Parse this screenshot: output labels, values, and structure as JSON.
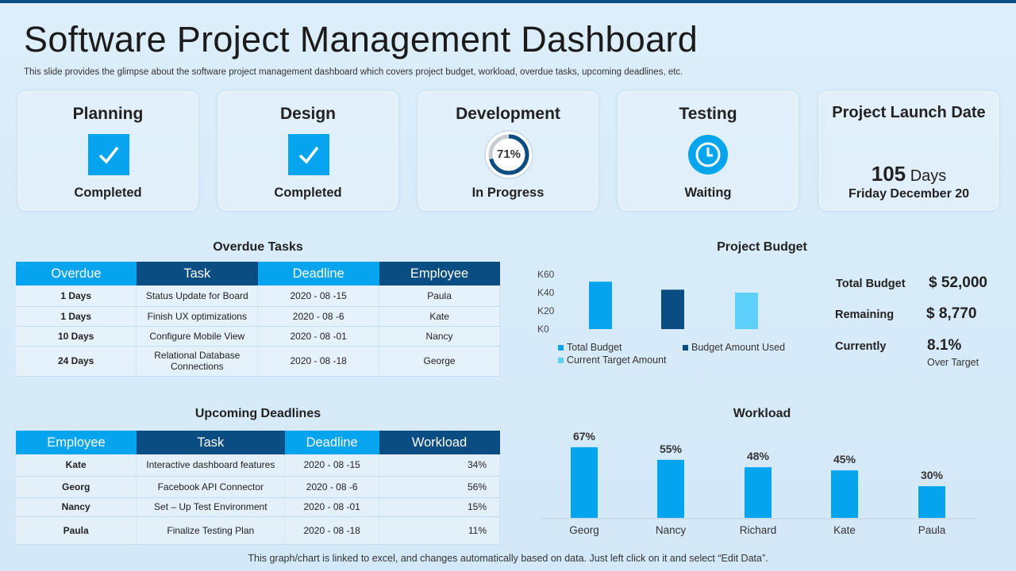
{
  "title": "Software Project Management Dashboard",
  "subtitle": "This slide provides the glimpse about the software project management dashboard which covers project budget, workload, overdue tasks, upcoming deadlines, etc.",
  "phases": [
    {
      "name": "Planning",
      "status": "Completed",
      "icon": "check-icon"
    },
    {
      "name": "Design",
      "status": "Completed",
      "icon": "check-icon"
    },
    {
      "name": "Development",
      "status": "In Progress",
      "icon": "progress-ring-icon",
      "progress_label": "71%",
      "progress": 0.71
    },
    {
      "name": "Testing",
      "status": "Waiting",
      "icon": "clock-icon"
    }
  ],
  "launch": {
    "title": "Project Launch Date",
    "days_num": "105",
    "days_unit": "Days",
    "date": "Friday December 20"
  },
  "overdue": {
    "title": "Overdue Tasks",
    "headers": [
      "Overdue",
      "Task",
      "Deadline",
      "Employee"
    ],
    "rows": [
      [
        "1 Days",
        "Status Update for Board",
        "2020 - 08 -15",
        "Paula"
      ],
      [
        "1 Days",
        "Finish UX optimizations",
        "2020 - 08 -6",
        "Kate"
      ],
      [
        "10 Days",
        "Configure Mobile View",
        "2020 - 08 -01",
        "Nancy"
      ],
      [
        "24 Days",
        "Relational Database Connections",
        "2020 - 08 -18",
        "George"
      ]
    ]
  },
  "upcoming": {
    "title": "Upcoming Deadlines",
    "headers": [
      "Employee",
      "Task",
      "Deadline",
      "Workload"
    ],
    "rows": [
      [
        "Kate",
        "Interactive dashboard features",
        "2020 - 08 -15",
        "34%"
      ],
      [
        "Georg",
        "Facebook API Connector",
        "2020 - 08 -6",
        "56%"
      ],
      [
        "Nancy",
        "Set – Up Test Environment",
        "2020 - 08 -01",
        "15%"
      ],
      [
        "Paula",
        "Finalize Testing Plan",
        "2020 - 08 -18",
        "11%"
      ]
    ]
  },
  "budget_summary": {
    "total_label": "Total Budget",
    "total_value": "$ 52,000",
    "remaining_label": "Remaining",
    "remaining_value": "$ 8,770",
    "currently_label": "Currently",
    "currently_value": "8.1%",
    "currently_note": "Over Target"
  },
  "colors": {
    "light_blue": "#05a4ee",
    "dark_blue": "#0a4d82",
    "pale_blue": "#5dd1fb"
  },
  "footer": "This graph/chart is linked to excel, and changes automatically based on data. Just left click on it and select “Edit Data”.",
  "chart_data": [
    {
      "type": "bar",
      "title": "Project Budget",
      "categories": [
        ""
      ],
      "series": [
        {
          "name": "Total Budget",
          "values": [
            52000
          ]
        },
        {
          "name": "Budget Amount Used",
          "values": [
            43230
          ]
        },
        {
          "name": "Current Target Amount",
          "values": [
            40000
          ]
        }
      ],
      "ylim": [
        0,
        60000
      ],
      "yticks": [
        "K0",
        "K20",
        "K40",
        "K60"
      ],
      "legend": "bottom"
    },
    {
      "type": "bar",
      "title": "Workload",
      "categories": [
        "Georg",
        "Nancy",
        "Richard",
        "Kate",
        "Paula"
      ],
      "values": [
        67,
        55,
        48,
        45,
        30
      ],
      "labels": [
        "67%",
        "55%",
        "48%",
        "45%",
        "30%"
      ],
      "ylim": [
        0,
        70
      ]
    }
  ]
}
